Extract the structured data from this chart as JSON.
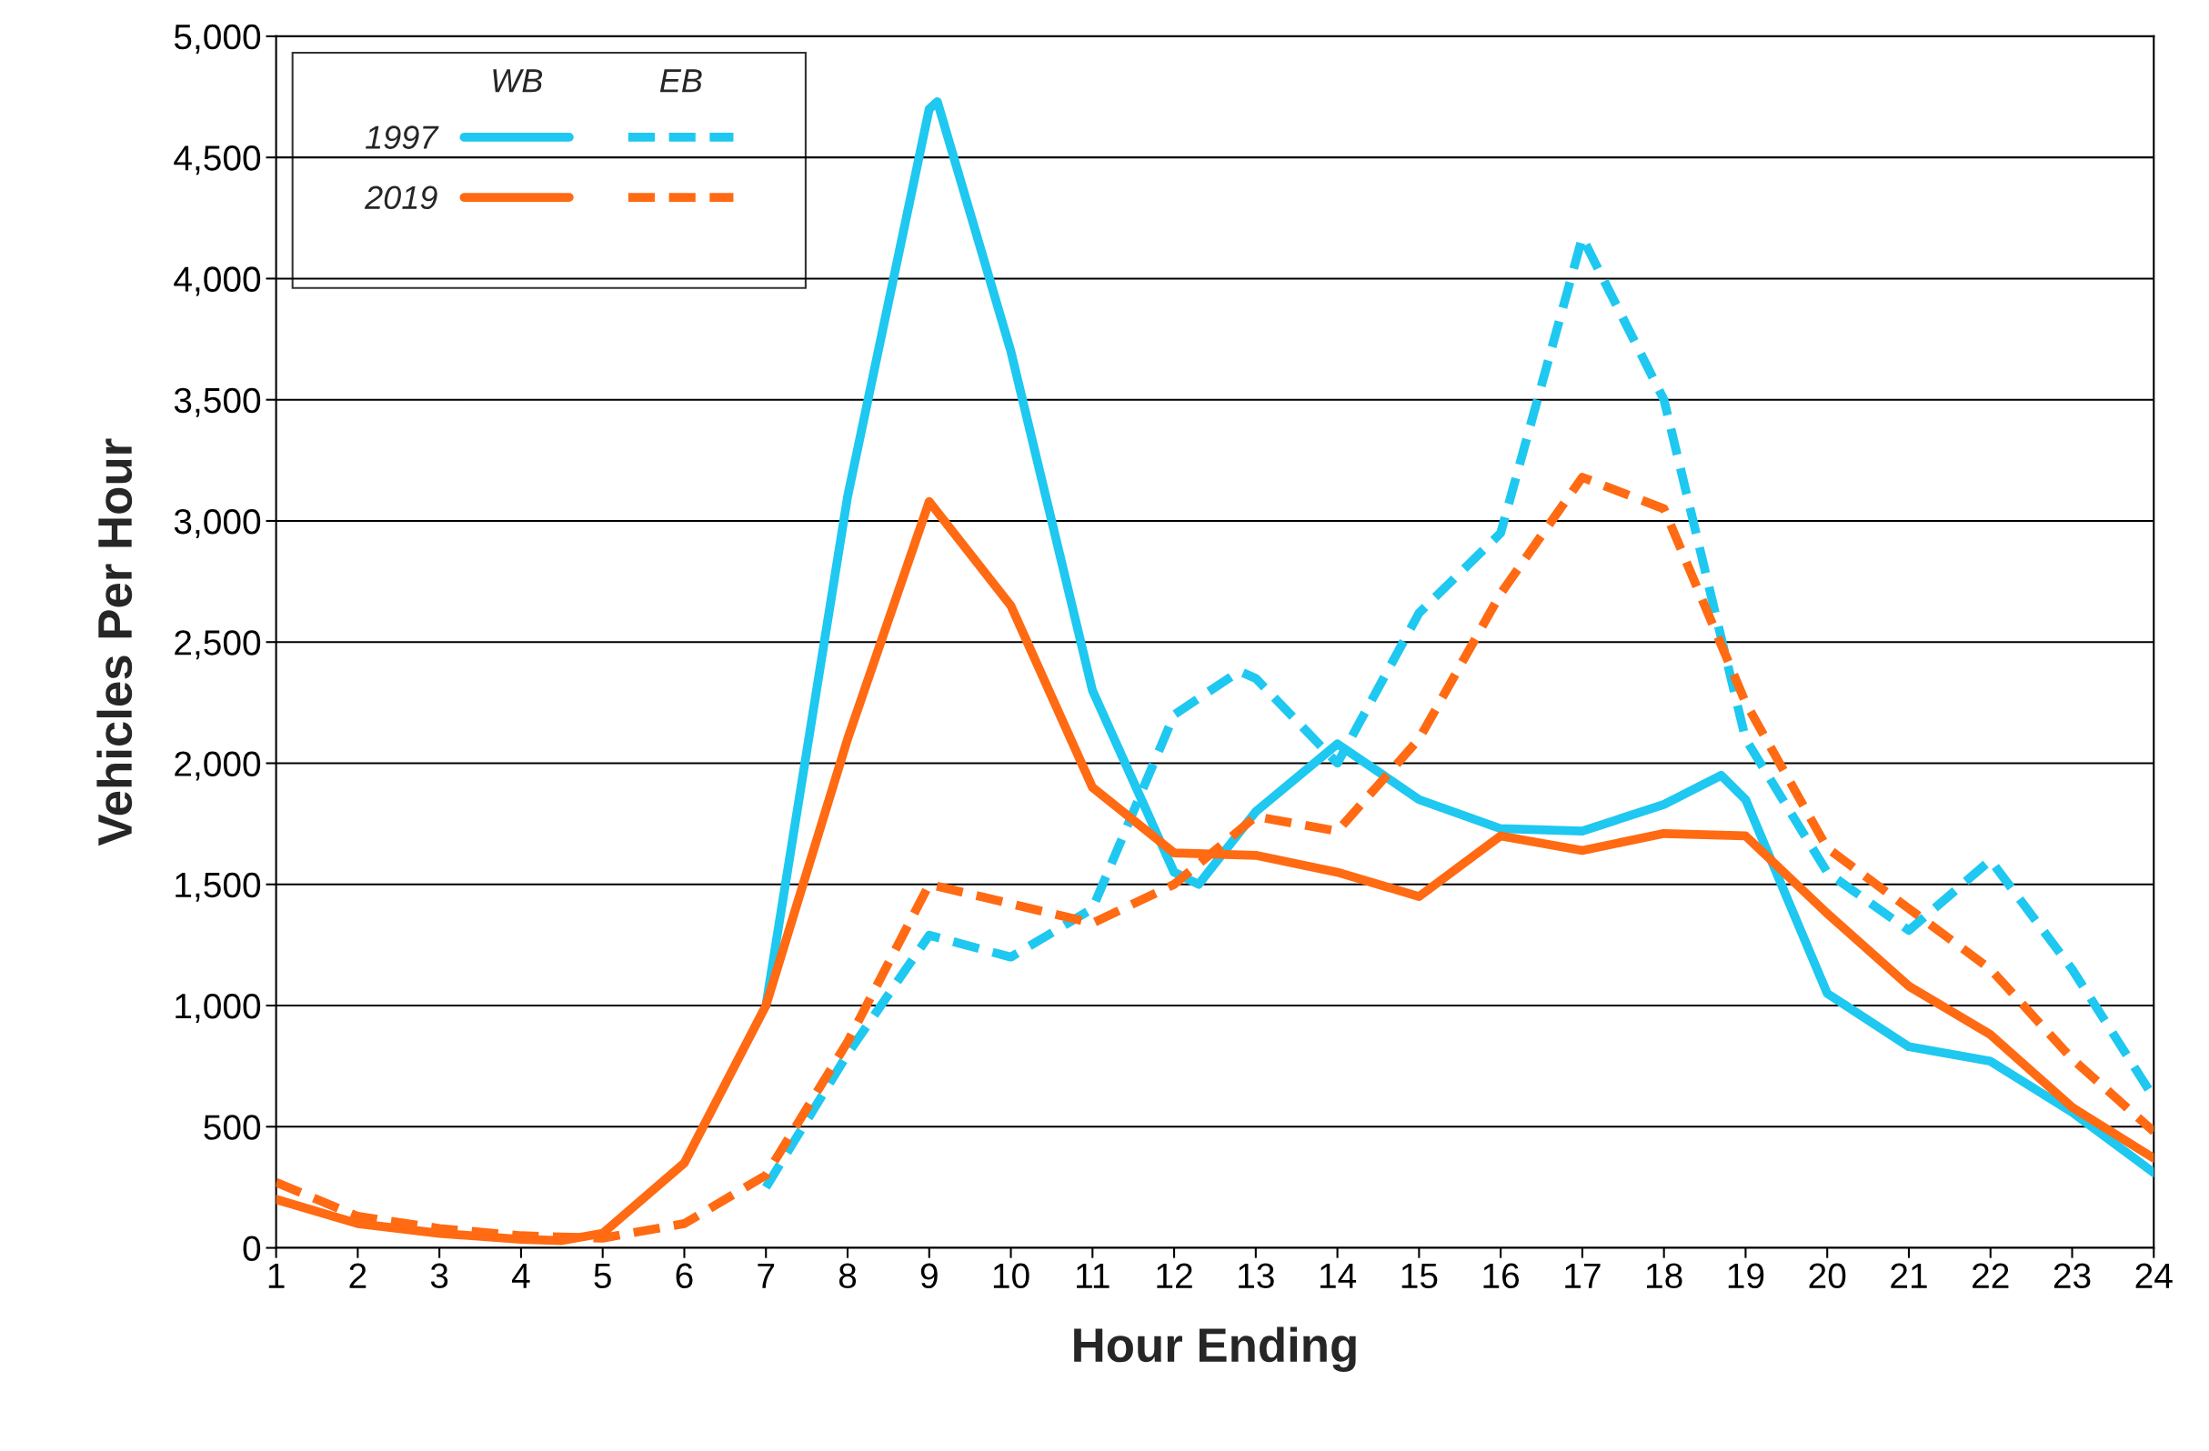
{
  "chart_data": {
    "type": "line",
    "xlabel": "Hour Ending",
    "ylabel": "Vehicles Per Hour",
    "xlim": [
      1,
      24
    ],
    "xticks": [
      1,
      2,
      3,
      4,
      5,
      6,
      7,
      8,
      9,
      10,
      11,
      12,
      13,
      14,
      15,
      16,
      17,
      18,
      19,
      20,
      21,
      22,
      23,
      24
    ],
    "ylim": [
      0,
      5000
    ],
    "yticks": [
      0,
      500,
      {
        "value": 1000,
        "label": "1,000"
      },
      {
        "value": 1500,
        "label": "1,500"
      },
      {
        "value": 2000,
        "label": "2,000"
      },
      {
        "value": 2500,
        "label": "2,500"
      },
      {
        "value": 3000,
        "label": "3,000"
      },
      {
        "value": 3500,
        "label": "3,500"
      },
      {
        "value": 4000,
        "label": "4,000"
      },
      {
        "value": 4500,
        "label": "4,500"
      },
      {
        "value": 5000,
        "label": "5,000"
      }
    ],
    "grid": "y",
    "legend": "top left",
    "annotations": [
      "WB",
      "EB"
    ],
    "series": [
      {
        "name": "1997",
        "color": "#1ec8f0",
        "line_style": "solid",
        "x": [
          7,
          8,
          9,
          9.1,
          10,
          11,
          12,
          12.3,
          13,
          14,
          15,
          16,
          17,
          18,
          18.7,
          19,
          20,
          21,
          22,
          23,
          24
        ],
        "values": [
          1000,
          3100,
          4700,
          4730,
          3700,
          2300,
          1550,
          1500,
          1800,
          2080,
          1850,
          1730,
          1720,
          1830,
          1950,
          1850,
          1050,
          830,
          770,
          560,
          310
        ]
      },
      {
        "color": "#1ec8f0",
        "line_style": "dashed",
        "x": [
          7,
          8,
          9,
          10,
          11,
          12,
          12.8,
          13,
          14,
          15,
          16,
          17,
          18,
          19,
          20,
          21,
          22,
          23,
          24
        ],
        "values": [
          250,
          800,
          1290,
          1200,
          1400,
          2200,
          2380,
          2350,
          2000,
          2620,
          2950,
          4170,
          3500,
          2100,
          1550,
          1310,
          1600,
          1150,
          620
        ]
      },
      {
        "name": "2019",
        "color": "#ff6a13",
        "line_style": "solid",
        "x": [
          1,
          2,
          3,
          4,
          4.5,
          5,
          6,
          7,
          8,
          9,
          10,
          11,
          12,
          13,
          14,
          15,
          16,
          17,
          18,
          19,
          20,
          21,
          22,
          23,
          24
        ],
        "values": [
          200,
          100,
          60,
          35,
          30,
          60,
          350,
          1000,
          2100,
          3080,
          2650,
          1900,
          1630,
          1620,
          1550,
          1450,
          1700,
          1640,
          1710,
          1700,
          1380,
          1080,
          880,
          580,
          370
        ]
      },
      {
        "color": "#ff6a13",
        "line_style": "dashed",
        "x": [
          1,
          2,
          3,
          4,
          5,
          6,
          7,
          8,
          9,
          10,
          11,
          12,
          13,
          14,
          15,
          16,
          17,
          18,
          19,
          20,
          21,
          22,
          23,
          24
        ],
        "values": [
          270,
          130,
          80,
          50,
          40,
          100,
          300,
          850,
          1500,
          1420,
          1340,
          1500,
          1780,
          1720,
          2100,
          2700,
          3180,
          3050,
          2250,
          1650,
          1400,
          1150,
          780,
          480
        ]
      }
    ]
  }
}
